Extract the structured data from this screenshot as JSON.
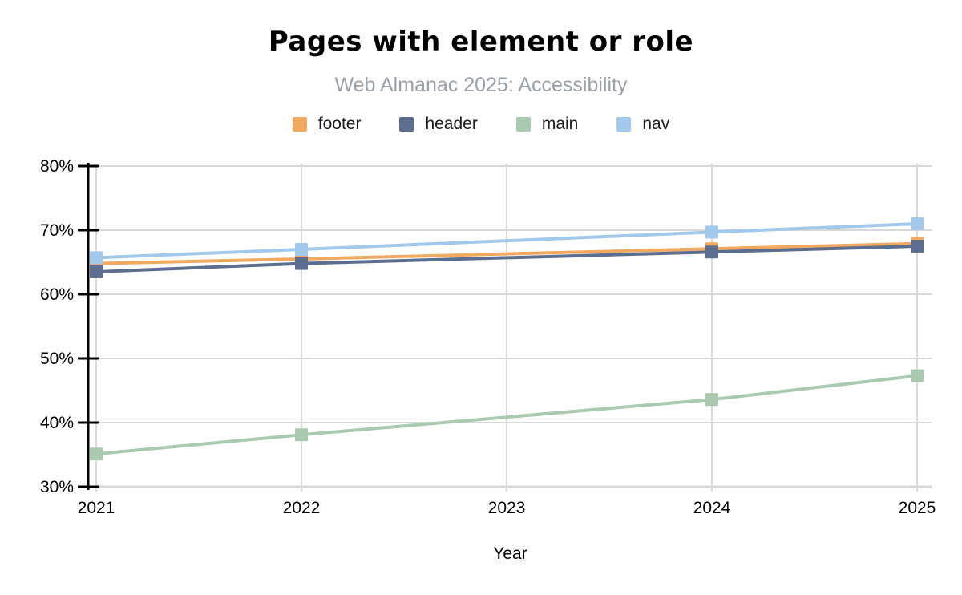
{
  "header": {
    "title": "Pages with element or role",
    "subtitle": "Web Almanac 2025: Accessibility"
  },
  "chart_data": {
    "type": "line",
    "title": "Pages with element or role",
    "subtitle": "Web Almanac 2025: Accessibility",
    "xlabel": "Year",
    "ylabel": "",
    "x": [
      2021,
      2022,
      2024,
      2025
    ],
    "x_note": "no 2023 data point; lines connect 2022 directly to 2024",
    "x_axis_ticks": [
      2021,
      2022,
      2023,
      2024,
      2025
    ],
    "ylim": [
      30,
      80
    ],
    "y_ticks": [
      30,
      40,
      50,
      60,
      70,
      80
    ],
    "y_tick_suffix": "%",
    "grid": true,
    "legend_position": "top",
    "marker": "square",
    "series": [
      {
        "name": "footer",
        "color": "#F1A85F",
        "values": [
          64.8,
          65.5,
          67.1,
          67.9
        ]
      },
      {
        "name": "header",
        "color": "#5B6E8F",
        "values": [
          63.5,
          64.8,
          66.6,
          67.5
        ]
      },
      {
        "name": "main",
        "color": "#A9C9B0",
        "values": [
          35.1,
          38.1,
          43.6,
          47.3
        ]
      },
      {
        "name": "nav",
        "color": "#A2C8EC",
        "values": [
          65.7,
          67.0,
          69.7,
          71.0
        ]
      }
    ]
  },
  "colors": {
    "background": "#FFFFFF",
    "grid": "#D8D8D8",
    "axis": "#000000",
    "title_text": "#000000",
    "subtitle_text": "#9AA0A6",
    "legend_text": "#1C1C1C"
  }
}
